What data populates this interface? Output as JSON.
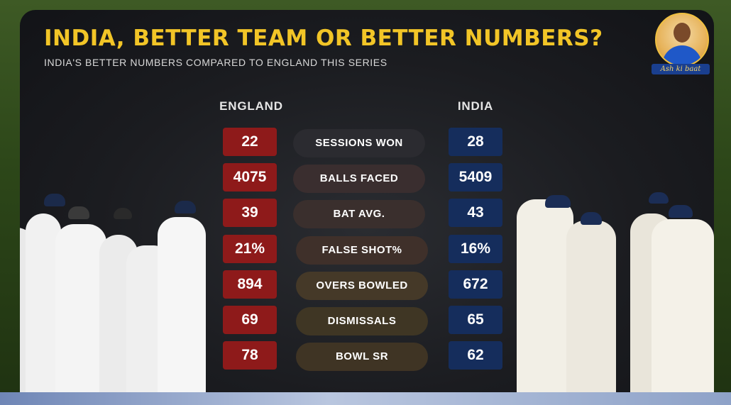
{
  "header": {
    "title": "INDIA, BETTER TEAM OR BETTER NUMBERS?",
    "subtitle": "INDIA'S BETTER NUMBERS COMPARED TO ENGLAND THIS SERIES"
  },
  "logo": {
    "tagline": "Ash ki baat",
    "icon": "presenter-portrait"
  },
  "columns": {
    "left": "ENGLAND",
    "right": "INDIA"
  },
  "stats": [
    {
      "label": "SESSIONS WON",
      "england": "22",
      "india": "28"
    },
    {
      "label": "BALLS FACED",
      "england": "4075",
      "india": "5409"
    },
    {
      "label": "BAT AVG.",
      "england": "39",
      "india": "43"
    },
    {
      "label": "FALSE SHOT%",
      "england": "21%",
      "india": "16%"
    },
    {
      "label": "OVERS BOWLED",
      "england": "894",
      "india": "672"
    },
    {
      "label": "DISMISSALS",
      "england": "69",
      "india": "65"
    },
    {
      "label": "BOWL SR",
      "england": "78",
      "india": "62"
    }
  ],
  "colors": {
    "title": "#f2c527",
    "england_box": "#8e1a1a",
    "india_box": "#152d5c"
  }
}
